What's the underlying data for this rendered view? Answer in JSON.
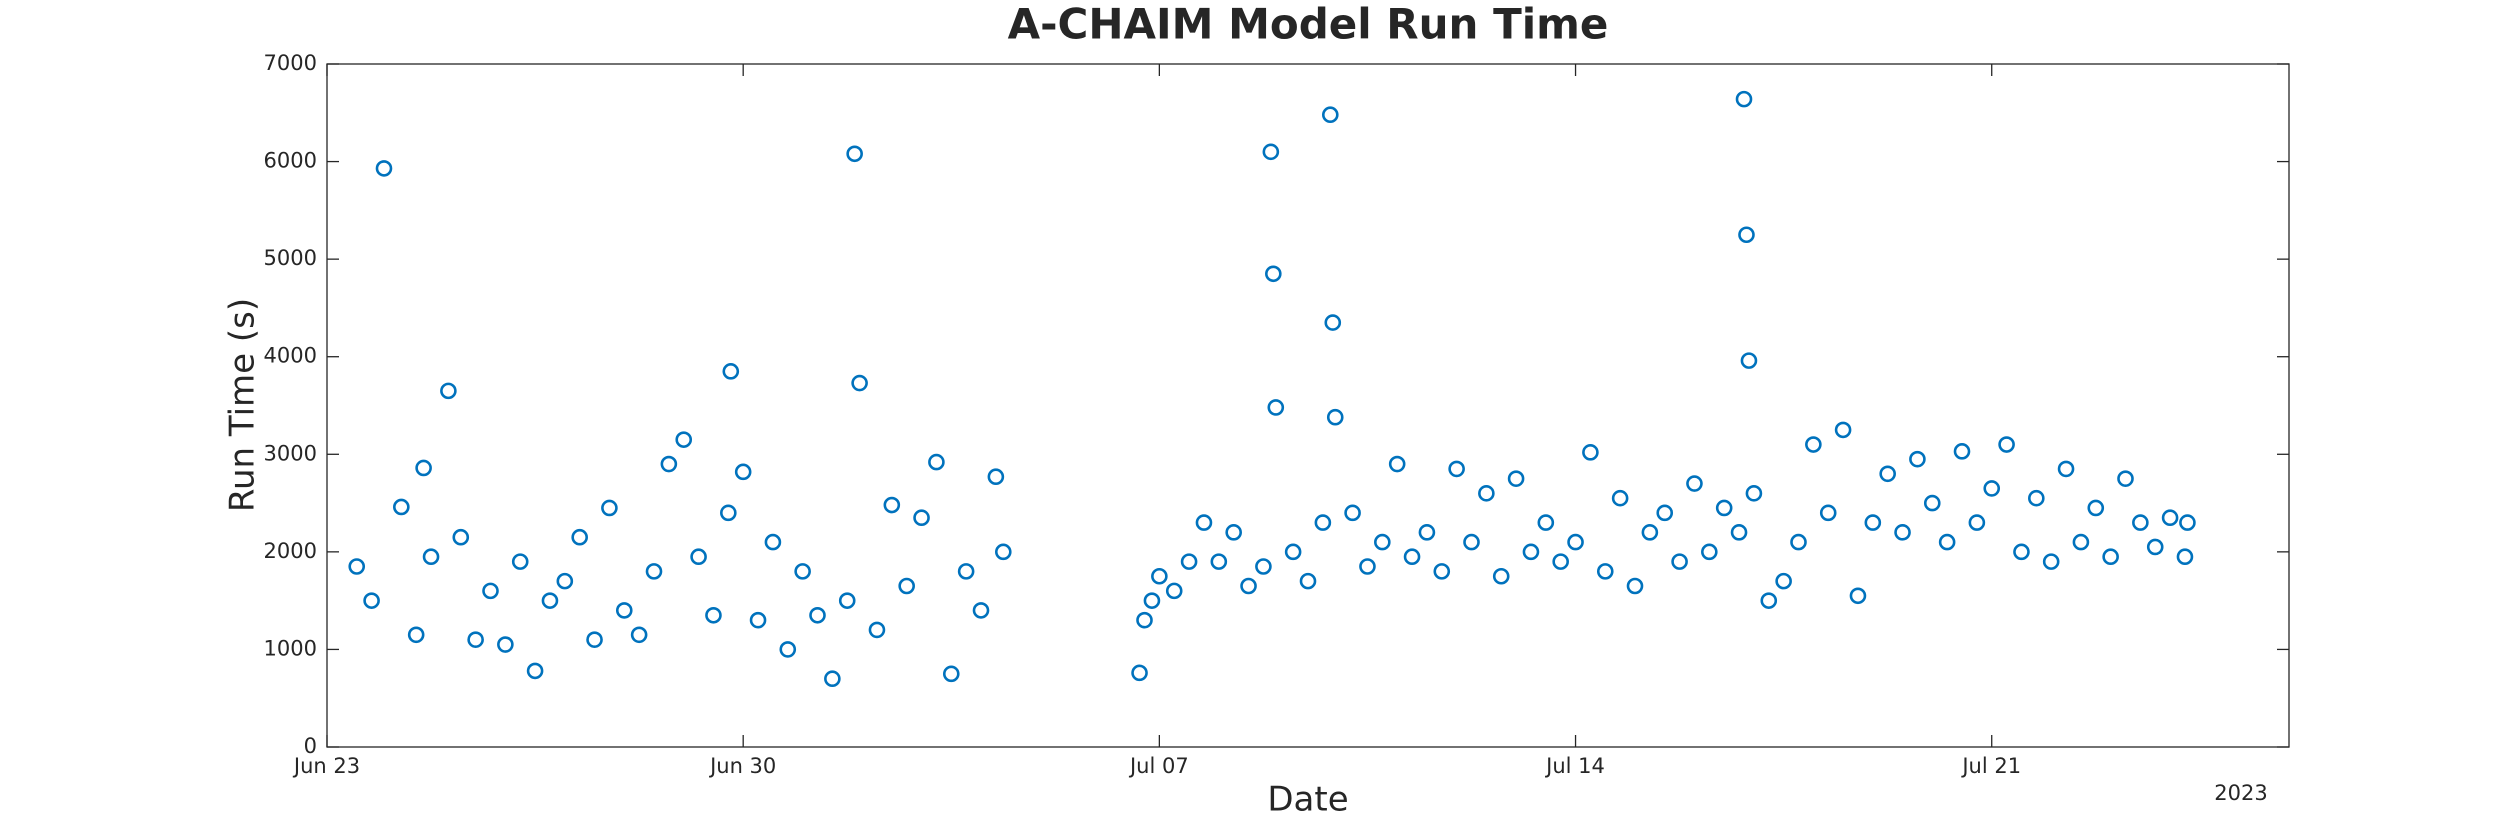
{
  "chart_data": {
    "type": "scatter",
    "title": "A-CHAIM Model Run Time",
    "x_label": "Date",
    "y_label": "Run Time (s)",
    "year_label": "2023",
    "xlim": [
      "2023-06-23T00:00",
      "2023-07-26T00:00"
    ],
    "xticks": [
      {
        "value": "2023-06-23T00:00",
        "label": "Jun 23"
      },
      {
        "value": "2023-06-30T00:00",
        "label": "Jun 30"
      },
      {
        "value": "2023-07-07T00:00",
        "label": "Jul 07"
      },
      {
        "value": "2023-07-14T00:00",
        "label": "Jul 14"
      },
      {
        "value": "2023-07-21T00:00",
        "label": "Jul 21"
      }
    ],
    "ylim": [
      0,
      7000
    ],
    "yticks": [
      0,
      1000,
      2000,
      3000,
      4000,
      5000,
      6000,
      7000
    ],
    "grid": false,
    "color": "#0072bd",
    "x": [
      "2023-06-23T12:00",
      "2023-06-23T18:00",
      "2023-06-23T23:00",
      "2023-06-24T06:00",
      "2023-06-24T12:00",
      "2023-06-24T15:00",
      "2023-06-24T18:00",
      "2023-06-25T01:00",
      "2023-06-25T06:00",
      "2023-06-25T12:00",
      "2023-06-25T18:00",
      "2023-06-26T00:00",
      "2023-06-26T06:00",
      "2023-06-26T12:00",
      "2023-06-26T18:00",
      "2023-06-27T00:00",
      "2023-06-27T06:00",
      "2023-06-27T12:00",
      "2023-06-27T18:00",
      "2023-06-28T00:00",
      "2023-06-28T06:00",
      "2023-06-28T12:00",
      "2023-06-28T18:00",
      "2023-06-29T00:00",
      "2023-06-29T06:00",
      "2023-06-29T12:00",
      "2023-06-29T18:00",
      "2023-06-29T19:00",
      "2023-06-30T00:00",
      "2023-06-30T06:00",
      "2023-06-30T12:00",
      "2023-06-30T18:00",
      "2023-07-01T00:00",
      "2023-07-01T06:00",
      "2023-07-01T12:00",
      "2023-07-01T18:00",
      "2023-07-01T21:00",
      "2023-07-01T23:00",
      "2023-07-02T06:00",
      "2023-07-02T12:00",
      "2023-07-02T18:00",
      "2023-07-03T00:00",
      "2023-07-03T06:00",
      "2023-07-03T12:00",
      "2023-07-03T18:00",
      "2023-07-04T00:00",
      "2023-07-04T06:00",
      "2023-07-04T09:00",
      "2023-07-06T16:00",
      "2023-07-06T18:00",
      "2023-07-06T21:00",
      "2023-07-07T00:00",
      "2023-07-07T06:00",
      "2023-07-07T12:00",
      "2023-07-07T18:00",
      "2023-07-08T00:00",
      "2023-07-08T06:00",
      "2023-07-08T12:00",
      "2023-07-08T18:00",
      "2023-07-08T21:00",
      "2023-07-08T22:00",
      "2023-07-08T23:00",
      "2023-07-09T06:00",
      "2023-07-09T12:00",
      "2023-07-09T18:00",
      "2023-07-09T21:00",
      "2023-07-09T22:00",
      "2023-07-09T23:00",
      "2023-07-10T06:00",
      "2023-07-10T12:00",
      "2023-07-10T18:00",
      "2023-07-11T00:00",
      "2023-07-11T06:00",
      "2023-07-11T12:00",
      "2023-07-11T18:00",
      "2023-07-12T00:00",
      "2023-07-12T06:00",
      "2023-07-12T12:00",
      "2023-07-12T18:00",
      "2023-07-13T00:00",
      "2023-07-13T06:00",
      "2023-07-13T12:00",
      "2023-07-13T18:00",
      "2023-07-14T00:00",
      "2023-07-14T06:00",
      "2023-07-14T12:00",
      "2023-07-14T18:00",
      "2023-07-15T00:00",
      "2023-07-15T06:00",
      "2023-07-15T12:00",
      "2023-07-15T18:00",
      "2023-07-16T00:00",
      "2023-07-16T06:00",
      "2023-07-16T12:00",
      "2023-07-16T18:00",
      "2023-07-16T20:00",
      "2023-07-16T21:00",
      "2023-07-16T22:00",
      "2023-07-17T00:00",
      "2023-07-17T06:00",
      "2023-07-17T12:00",
      "2023-07-17T18:00",
      "2023-07-18T00:00",
      "2023-07-18T06:00",
      "2023-07-18T12:00",
      "2023-07-18T18:00",
      "2023-07-19T00:00",
      "2023-07-19T06:00",
      "2023-07-19T12:00",
      "2023-07-19T18:00",
      "2023-07-20T00:00",
      "2023-07-20T06:00",
      "2023-07-20T12:00",
      "2023-07-20T18:00",
      "2023-07-21T00:00",
      "2023-07-21T06:00",
      "2023-07-21T12:00",
      "2023-07-21T18:00",
      "2023-07-22T00:00",
      "2023-07-22T06:00",
      "2023-07-22T12:00",
      "2023-07-22T18:00",
      "2023-07-23T00:00",
      "2023-07-23T06:00",
      "2023-07-23T12:00",
      "2023-07-23T18:00",
      "2023-07-24T00:00",
      "2023-07-24T06:00",
      "2023-07-24T07:00"
    ],
    "values": [
      1850,
      1500,
      5930,
      2460,
      1150,
      2860,
      1950,
      3650,
      2150,
      1100,
      1600,
      1050,
      1900,
      780,
      1500,
      1700,
      2150,
      1100,
      2450,
      1400,
      1150,
      1800,
      2900,
      3150,
      1950,
      1350,
      2400,
      3850,
      2820,
      1300,
      2100,
      1000,
      1800,
      1350,
      700,
      1500,
      6080,
      3730,
      1200,
      2480,
      1650,
      2350,
      2920,
      750,
      1800,
      1400,
      2770,
      2000,
      760,
      1300,
      1500,
      1750,
      1600,
      1900,
      2300,
      1900,
      2200,
      1650,
      1850,
      6100,
      4850,
      3480,
      2000,
      1700,
      2300,
      6480,
      4350,
      3380,
      2400,
      1850,
      2100,
      2900,
      1950,
      2200,
      1800,
      2850,
      2100,
      2600,
      1750,
      2750,
      2000,
      2300,
      1900,
      2100,
      3020,
      1800,
      2550,
      1650,
      2200,
      2400,
      1900,
      2700,
      2000,
      2450,
      2200,
      6640,
      5250,
      3960,
      2600,
      1500,
      1700,
      2100,
      3100,
      2400,
      3250,
      1550,
      2300,
      2800,
      2200,
      2950,
      2500,
      2100,
      3030,
      2300,
      2650,
      3100,
      2000,
      2550,
      1900,
      2850,
      2100,
      2450,
      1950,
      2750,
      2300,
      2050,
      2350,
      1950,
      2300
    ]
  }
}
